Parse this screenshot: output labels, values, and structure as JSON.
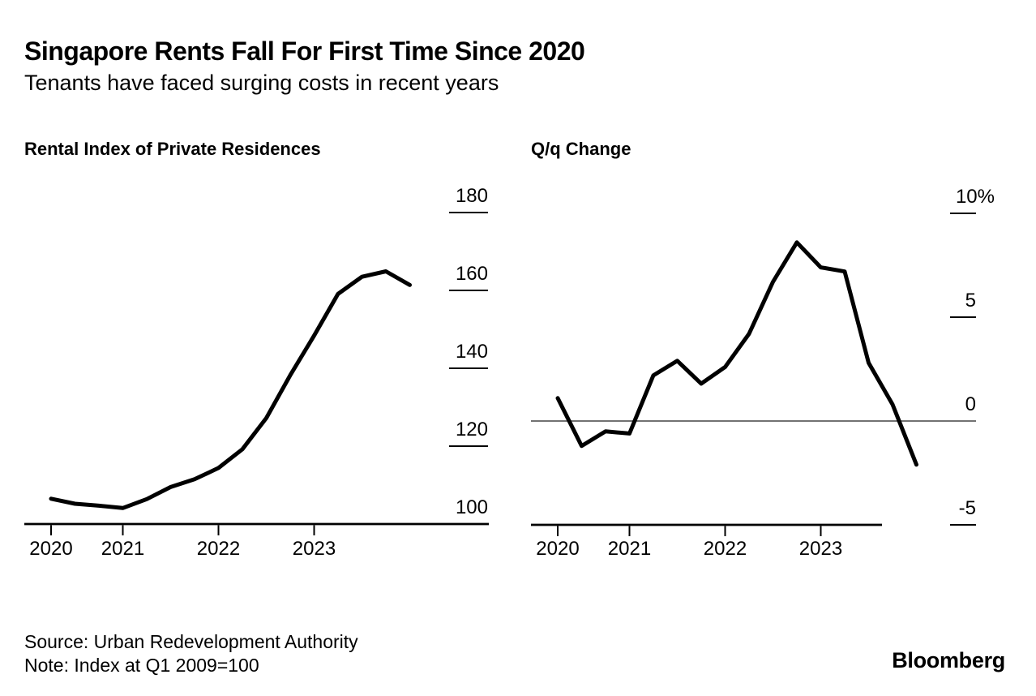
{
  "header": {
    "title": "Singapore Rents Fall For First Time Since 2020",
    "subtitle": "Tenants have faced surging costs in recent years"
  },
  "footer": {
    "source": "Source: Urban Redevelopment Authority",
    "note": "Note: Index at Q1 2009=100",
    "brand": "Bloomberg"
  },
  "colors": {
    "line": "#000000",
    "axis": "#000000",
    "zero_line": "#444444",
    "background": "#ffffff"
  },
  "chart_data": [
    {
      "type": "line",
      "title": "Rental Index of Private Residences",
      "x": [
        "Q1 2020",
        "Q2 2020",
        "Q3 2020",
        "Q4 2020",
        "Q1 2021",
        "Q2 2021",
        "Q3 2021",
        "Q4 2021",
        "Q1 2022",
        "Q2 2022",
        "Q3 2022",
        "Q4 2022",
        "Q1 2023",
        "Q2 2023",
        "Q3 2023",
        "Q4 2023"
      ],
      "values": [
        106.5,
        105.2,
        104.7,
        104.1,
        106.4,
        109.5,
        111.5,
        114.4,
        119.2,
        127.2,
        138.2,
        148.4,
        159.1,
        163.5,
        164.9,
        161.4
      ],
      "ylim": [
        100,
        185
      ],
      "yticks": [
        100,
        120,
        140,
        160,
        180
      ],
      "ytick_labels": [
        "100",
        "120",
        "140",
        "160",
        "180"
      ],
      "xticks": [
        "2020",
        "2021",
        "2022",
        "2023"
      ],
      "legend": "none",
      "grid": "off",
      "ylabel_side": "right"
    },
    {
      "type": "line",
      "title": "Q/q Change",
      "x": [
        "Q1 2020",
        "Q2 2020",
        "Q3 2020",
        "Q4 2020",
        "Q1 2021",
        "Q2 2021",
        "Q3 2021",
        "Q4 2021",
        "Q1 2022",
        "Q2 2022",
        "Q3 2022",
        "Q4 2022",
        "Q1 2023",
        "Q2 2023",
        "Q3 2023",
        "Q4 2023"
      ],
      "values": [
        1.1,
        -1.2,
        -0.5,
        -0.6,
        2.2,
        2.9,
        1.8,
        2.6,
        4.2,
        6.7,
        8.6,
        7.4,
        7.2,
        2.8,
        0.8,
        -2.1
      ],
      "unit": "%",
      "ylim": [
        -5,
        10
      ],
      "yticks": [
        -5,
        0,
        5,
        10
      ],
      "ytick_labels": [
        "-5",
        "0",
        "5",
        "10%"
      ],
      "xticks": [
        "2020",
        "2021",
        "2022",
        "2023"
      ],
      "zero_line": true,
      "legend": "none",
      "grid": "off",
      "ylabel_side": "right"
    }
  ]
}
